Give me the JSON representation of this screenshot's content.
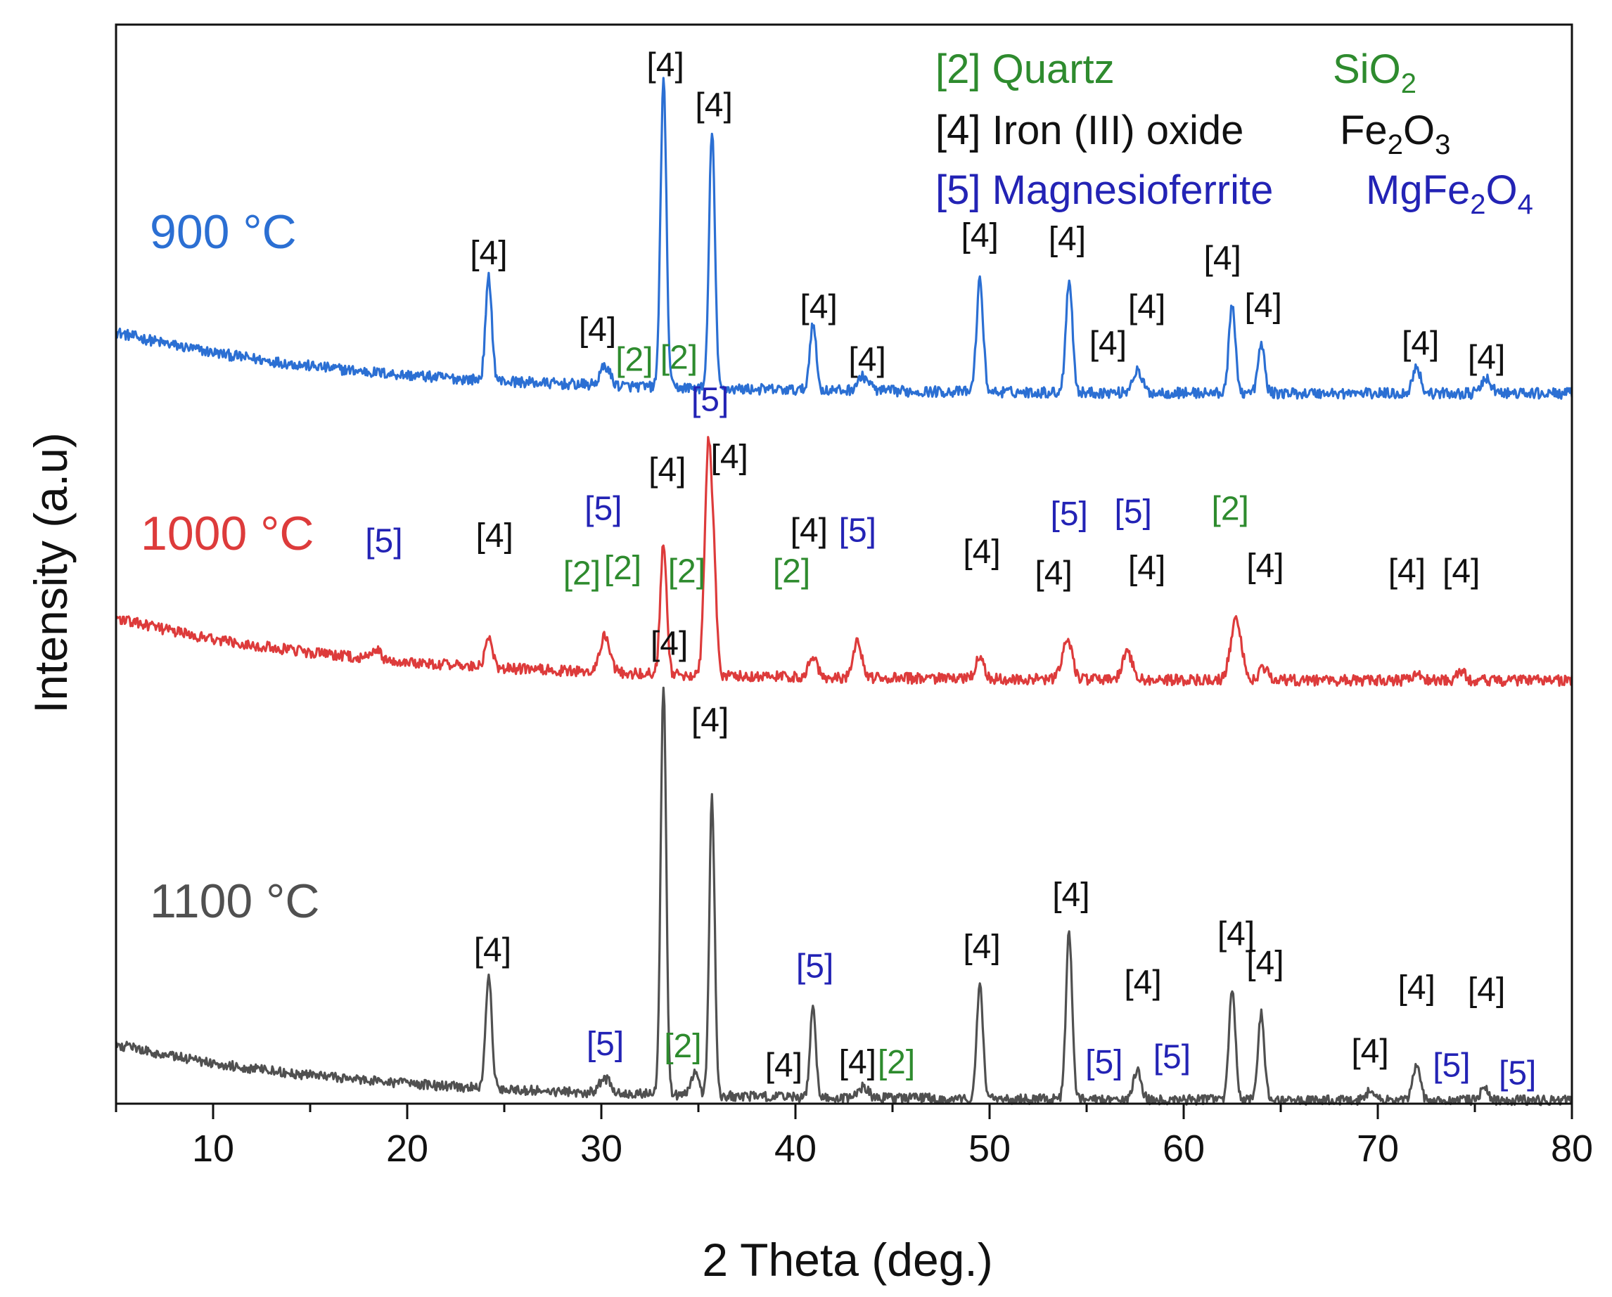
{
  "chart_data": {
    "type": "line",
    "title": "",
    "xlabel": "2 Theta (deg.)",
    "ylabel": "Intensity (a.u)",
    "xlim": [
      5,
      80
    ],
    "xticks": [
      10,
      20,
      30,
      40,
      50,
      60,
      70,
      80
    ],
    "ylim": [
      0,
      100
    ],
    "y_ticks_shown": false,
    "colors": {
      "900": "#2b6fd3",
      "1000": "#dd3b3b",
      "1100": "#505050",
      "legend_quartz": "#2e8b2e",
      "legend_iron": "#111111",
      "legend_mgfe": "#2323b5",
      "axis": "#111111"
    },
    "legend": [
      {
        "code": "[2]",
        "name": "Quartz",
        "formula": "SiO",
        "sub1": "2",
        "color": "#2e8b2e"
      },
      {
        "code": "[4]",
        "name": "Iron (III) oxide",
        "formula": "Fe",
        "sub1": "2",
        "mid": "O",
        "sub2": "3",
        "color": "#111111"
      },
      {
        "code": "[5]",
        "name": "Magnesioferrite",
        "formula": "MgFe",
        "sub1": "2",
        "mid": "O",
        "sub2": "4",
        "color": "#2323b5"
      }
    ],
    "series": [
      {
        "name": "900 °C",
        "label": "900 °C",
        "color": "#2b6fd3",
        "baseline": {
          "start": 71.5,
          "end": 65.8,
          "decay": 6
        },
        "noise": 0.5,
        "peaks": [
          {
            "x": 24.2,
            "h": 9.5,
            "w": 0.16
          },
          {
            "x": 30.2,
            "h": 1.8,
            "w": 0.25
          },
          {
            "x": 33.2,
            "h": 28.5,
            "w": 0.15
          },
          {
            "x": 35.7,
            "h": 24.0,
            "w": 0.15
          },
          {
            "x": 40.9,
            "h": 6.3,
            "w": 0.16
          },
          {
            "x": 43.5,
            "h": 1.3,
            "w": 0.3
          },
          {
            "x": 49.5,
            "h": 10.3,
            "w": 0.17
          },
          {
            "x": 54.1,
            "h": 10.5,
            "w": 0.17
          },
          {
            "x": 57.6,
            "h": 2.0,
            "w": 0.25
          },
          {
            "x": 62.5,
            "h": 8.0,
            "w": 0.17
          },
          {
            "x": 64.0,
            "h": 4.5,
            "w": 0.17
          },
          {
            "x": 72.0,
            "h": 2.5,
            "w": 0.2
          },
          {
            "x": 75.6,
            "h": 1.3,
            "w": 0.25
          }
        ],
        "annotations": [
          {
            "text": "[4]",
            "x": 33.3,
            "y": 95.2,
            "color": "#111111"
          },
          {
            "text": "[4]",
            "x": 35.8,
            "y": 91.5,
            "color": "#111111"
          },
          {
            "text": "[4]",
            "x": 24.2,
            "y": 77.8,
            "color": "#111111"
          },
          {
            "text": "[4]",
            "x": 29.8,
            "y": 70.7,
            "color": "#111111"
          },
          {
            "text": "[2]",
            "x": 31.7,
            "y": 67.9,
            "color": "#2e8b2e"
          },
          {
            "text": "[2]",
            "x": 34.0,
            "y": 68.1,
            "color": "#2e8b2e"
          },
          {
            "text": "[4]",
            "x": 41.2,
            "y": 72.8,
            "color": "#111111"
          },
          {
            "text": "[4]",
            "x": 43.7,
            "y": 67.9,
            "color": "#111111"
          },
          {
            "text": "[4]",
            "x": 49.5,
            "y": 79.4,
            "color": "#111111"
          },
          {
            "text": "[4]",
            "x": 54.0,
            "y": 79.1,
            "color": "#111111"
          },
          {
            "text": "[4]",
            "x": 56.1,
            "y": 69.4,
            "color": "#111111"
          },
          {
            "text": "[4]",
            "x": 58.1,
            "y": 72.8,
            "color": "#111111"
          },
          {
            "text": "[4]",
            "x": 62.0,
            "y": 77.3,
            "color": "#111111"
          },
          {
            "text": "[4]",
            "x": 64.1,
            "y": 72.9,
            "color": "#111111"
          },
          {
            "text": "[4]",
            "x": 72.2,
            "y": 69.4,
            "color": "#111111"
          },
          {
            "text": "[4]",
            "x": 75.6,
            "y": 68.1,
            "color": "#111111"
          }
        ]
      },
      {
        "name": "1000 °C",
        "label": "1000 °C",
        "color": "#dd3b3b",
        "baseline": {
          "start": 45.0,
          "end": 39.2,
          "decay": 6
        },
        "noise": 0.5,
        "peaks": [
          {
            "x": 18.4,
            "h": 1.0,
            "w": 0.2
          },
          {
            "x": 24.2,
            "h": 2.8,
            "w": 0.18
          },
          {
            "x": 30.2,
            "h": 3.5,
            "w": 0.25
          },
          {
            "x": 33.2,
            "h": 12.0,
            "w": 0.16
          },
          {
            "x": 35.5,
            "h": 20.5,
            "w": 0.18
          },
          {
            "x": 35.8,
            "h": 8.0,
            "w": 0.15
          },
          {
            "x": 40.9,
            "h": 2.0,
            "w": 0.22
          },
          {
            "x": 43.2,
            "h": 3.5,
            "w": 0.2
          },
          {
            "x": 49.5,
            "h": 2.0,
            "w": 0.22
          },
          {
            "x": 54.0,
            "h": 3.8,
            "w": 0.25
          },
          {
            "x": 57.1,
            "h": 2.5,
            "w": 0.25
          },
          {
            "x": 62.7,
            "h": 5.6,
            "w": 0.28
          },
          {
            "x": 64.1,
            "h": 1.2,
            "w": 0.2
          },
          {
            "x": 72.0,
            "h": 0.8,
            "w": 0.2
          },
          {
            "x": 74.3,
            "h": 0.8,
            "w": 0.2
          }
        ],
        "annotations": [
          {
            "text": "[5]",
            "x": 35.6,
            "y": 64.2,
            "color": "#2323b5"
          },
          {
            "text": "[4]",
            "x": 36.6,
            "y": 58.9,
            "color": "#111111"
          },
          {
            "text": "[4]",
            "x": 33.4,
            "y": 57.7,
            "color": "#111111"
          },
          {
            "text": "[5]",
            "x": 18.8,
            "y": 51.1,
            "color": "#2323b5"
          },
          {
            "text": "[4]",
            "x": 24.5,
            "y": 51.6,
            "color": "#111111"
          },
          {
            "text": "[5]",
            "x": 30.1,
            "y": 54.1,
            "color": "#2323b5"
          },
          {
            "text": "[2]",
            "x": 29.0,
            "y": 48.1,
            "color": "#2e8b2e"
          },
          {
            "text": "[2]",
            "x": 31.1,
            "y": 48.6,
            "color": "#2e8b2e"
          },
          {
            "text": "[2]",
            "x": 34.4,
            "y": 48.3,
            "color": "#2e8b2e"
          },
          {
            "text": "[2]",
            "x": 39.8,
            "y": 48.3,
            "color": "#2e8b2e"
          },
          {
            "text": "[4]",
            "x": 40.7,
            "y": 52.1,
            "color": "#111111"
          },
          {
            "text": "[5]",
            "x": 43.2,
            "y": 52.1,
            "color": "#2323b5"
          },
          {
            "text": "[4]",
            "x": 49.6,
            "y": 50.1,
            "color": "#111111"
          },
          {
            "text": "[4]",
            "x": 53.3,
            "y": 48.1,
            "color": "#111111"
          },
          {
            "text": "[5]",
            "x": 54.1,
            "y": 53.6,
            "color": "#2323b5"
          },
          {
            "text": "[5]",
            "x": 57.4,
            "y": 53.8,
            "color": "#2323b5"
          },
          {
            "text": "[4]",
            "x": 58.1,
            "y": 48.6,
            "color": "#111111"
          },
          {
            "text": "[2]",
            "x": 62.4,
            "y": 54.1,
            "color": "#2e8b2e"
          },
          {
            "text": "[4]",
            "x": 64.2,
            "y": 48.8,
            "color": "#111111"
          },
          {
            "text": "[4]",
            "x": 71.5,
            "y": 48.3,
            "color": "#111111"
          },
          {
            "text": "[4]",
            "x": 74.3,
            "y": 48.3,
            "color": "#111111"
          }
        ]
      },
      {
        "name": "1100 °C",
        "label": "1100 °C",
        "color": "#505050",
        "baseline": {
          "start": 5.5,
          "end": 0.3,
          "decay": 6
        },
        "noise": 0.45,
        "peaks": [
          {
            "x": 24.2,
            "h": 10.5,
            "w": 0.16
          },
          {
            "x": 30.2,
            "h": 1.3,
            "w": 0.3
          },
          {
            "x": 33.2,
            "h": 38.0,
            "w": 0.14
          },
          {
            "x": 34.8,
            "h": 2.0,
            "w": 0.2
          },
          {
            "x": 35.7,
            "h": 27.5,
            "w": 0.14
          },
          {
            "x": 40.9,
            "h": 8.3,
            "w": 0.15
          },
          {
            "x": 43.5,
            "h": 1.0,
            "w": 0.25
          },
          {
            "x": 49.5,
            "h": 10.5,
            "w": 0.16
          },
          {
            "x": 54.1,
            "h": 15.5,
            "w": 0.16
          },
          {
            "x": 57.6,
            "h": 2.8,
            "w": 0.2
          },
          {
            "x": 62.5,
            "h": 10.5,
            "w": 0.16
          },
          {
            "x": 64.0,
            "h": 8.0,
            "w": 0.16
          },
          {
            "x": 69.6,
            "h": 0.8,
            "w": 0.2
          },
          {
            "x": 72.0,
            "h": 3.5,
            "w": 0.18
          },
          {
            "x": 75.5,
            "h": 1.2,
            "w": 0.2
          }
        ],
        "annotations": [
          {
            "text": "[4]",
            "x": 33.5,
            "y": 41.6,
            "color": "#111111"
          },
          {
            "text": "[4]",
            "x": 35.6,
            "y": 34.5,
            "color": "#111111"
          },
          {
            "text": "[4]",
            "x": 24.4,
            "y": 13.2,
            "color": "#111111"
          },
          {
            "text": "[5]",
            "x": 30.2,
            "y": 4.5,
            "color": "#2323b5"
          },
          {
            "text": "[2]",
            "x": 34.2,
            "y": 4.3,
            "color": "#2e8b2e"
          },
          {
            "text": "[4]",
            "x": 39.4,
            "y": 2.5,
            "color": "#111111"
          },
          {
            "text": "[5]",
            "x": 41.0,
            "y": 11.7,
            "color": "#2323b5"
          },
          {
            "text": "[4]",
            "x": 43.2,
            "y": 2.8,
            "color": "#111111"
          },
          {
            "text": "[2]",
            "x": 45.2,
            "y": 2.8,
            "color": "#2e8b2e"
          },
          {
            "text": "[4]",
            "x": 49.6,
            "y": 13.5,
            "color": "#111111"
          },
          {
            "text": "[4]",
            "x": 54.2,
            "y": 18.3,
            "color": "#111111"
          },
          {
            "text": "[5]",
            "x": 55.9,
            "y": 2.8,
            "color": "#2323b5"
          },
          {
            "text": "[4]",
            "x": 57.9,
            "y": 10.2,
            "color": "#111111"
          },
          {
            "text": "[5]",
            "x": 59.4,
            "y": 3.3,
            "color": "#2323b5"
          },
          {
            "text": "[4]",
            "x": 62.7,
            "y": 14.7,
            "color": "#111111"
          },
          {
            "text": "[4]",
            "x": 64.2,
            "y": 12.0,
            "color": "#111111"
          },
          {
            "text": "[4]",
            "x": 69.6,
            "y": 3.8,
            "color": "#111111"
          },
          {
            "text": "[4]",
            "x": 72.0,
            "y": 9.7,
            "color": "#111111"
          },
          {
            "text": "[5]",
            "x": 73.8,
            "y": 2.5,
            "color": "#2323b5"
          },
          {
            "text": "[4]",
            "x": 75.6,
            "y": 9.5,
            "color": "#111111"
          },
          {
            "text": "[5]",
            "x": 77.2,
            "y": 1.8,
            "color": "#2323b5"
          }
        ]
      }
    ]
  }
}
